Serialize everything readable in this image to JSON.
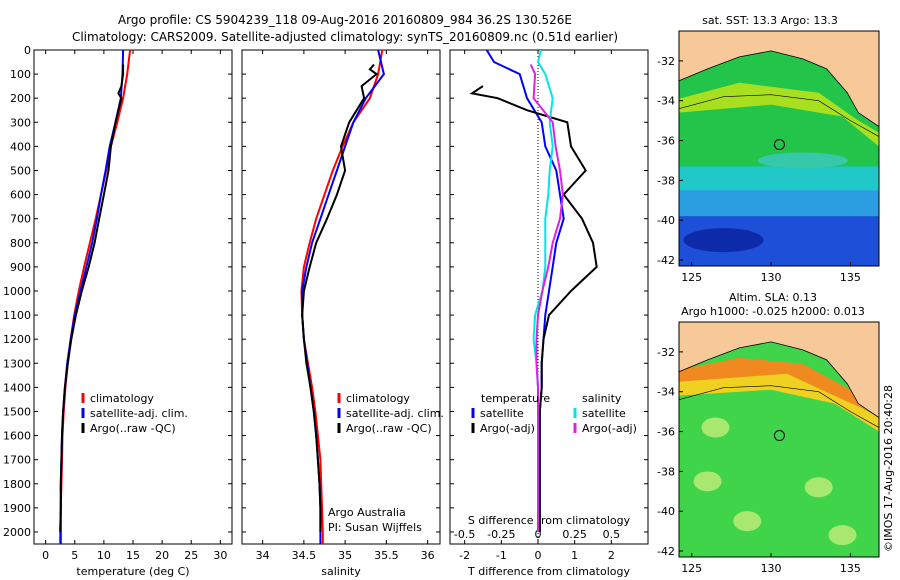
{
  "header": {
    "line1": "Argo profile: CS 5904239_118 09-Aug-2016 20160809_984 36.2S 130.526E",
    "line2": "Climatology: CARS2009. Satellite-adjusted climatology: synTS_20160809.nc (0.51d earlier)"
  },
  "footer": {
    "argo_australia": "Argo Australia",
    "pi": "PI: Susan Wijffels",
    "imos_stamp": "©IMOS 17-Aug-2016 20:40:28"
  },
  "colors": {
    "climatology": "#ff0000",
    "satellite": "#0000ff",
    "argo": "#000000",
    "sat_salinity": "#00e5e5",
    "argo_salinity": "#e020e0",
    "land": "#f7c898"
  },
  "chart_data": [
    {
      "type": "line",
      "panel": "temperature",
      "xlabel": "temperature (deg C)",
      "ylabel": "",
      "xlim": [
        -2,
        32
      ],
      "ylim": [
        2050,
        0
      ],
      "xticks": [
        0,
        5,
        10,
        15,
        20,
        25,
        30
      ],
      "yticks": [
        0,
        100,
        200,
        300,
        400,
        500,
        600,
        700,
        800,
        900,
        1000,
        1100,
        1200,
        1300,
        1400,
        1500,
        1600,
        1700,
        1800,
        1900,
        2000
      ],
      "legend": [
        "climatology",
        "satellite-adj. clim.",
        "Argo(..raw -QC)"
      ],
      "series": [
        {
          "name": "climatology",
          "depth": [
            0,
            100,
            200,
            300,
            400,
            500,
            600,
            700,
            800,
            900,
            1000,
            1100,
            1200,
            1300,
            1400,
            1500,
            1600,
            1700,
            1800,
            1900,
            2000,
            2050
          ],
          "values": [
            14.5,
            14.0,
            13.3,
            12.3,
            11.2,
            10.4,
            9.5,
            8.6,
            7.6,
            6.6,
            5.7,
            4.9,
            4.3,
            3.8,
            3.4,
            3.1,
            2.9,
            2.8,
            2.7,
            2.6,
            2.5,
            2.5
          ]
        },
        {
          "name": "satellite-adj. clim.",
          "depth": [
            0,
            100,
            200,
            300,
            400,
            500,
            600,
            700,
            800,
            900,
            1000,
            1100,
            1200,
            1300,
            1400,
            1500,
            1600,
            1700,
            1800,
            1900,
            2000,
            2050
          ],
          "values": [
            13.3,
            13.2,
            12.9,
            12.0,
            11.0,
            10.3,
            9.5,
            8.8,
            8.0,
            7.0,
            6.0,
            5.0,
            4.3,
            3.7,
            3.3,
            3.0,
            2.8,
            2.7,
            2.6,
            2.6,
            2.6,
            2.6
          ]
        },
        {
          "name": "Argo(..raw -QC)",
          "depth": [
            60,
            100,
            150,
            180,
            200,
            300,
            400,
            500,
            600,
            700,
            800,
            900,
            1000,
            1100,
            1200,
            1300,
            1400,
            1500,
            1600,
            1700,
            1800,
            1900,
            2000
          ],
          "values": [
            13.3,
            13.3,
            13.0,
            12.5,
            13.0,
            12.0,
            11.2,
            10.8,
            10.0,
            9.2,
            8.4,
            7.4,
            6.2,
            5.2,
            4.4,
            3.8,
            3.3,
            3.0,
            2.8,
            2.7,
            2.6,
            2.6,
            2.5
          ]
        }
      ]
    },
    {
      "type": "line",
      "panel": "salinity",
      "xlabel": "salinity",
      "ylabel": "",
      "xlim": [
        33.75,
        36.15
      ],
      "ylim": [
        2050,
        0
      ],
      "xticks": [
        34,
        34.5,
        35,
        35.5,
        36
      ],
      "legend": [
        "climatology",
        "satellite-adj. clim.",
        "Argo(..raw -QC)"
      ],
      "series": [
        {
          "name": "climatology",
          "depth": [
            0,
            100,
            200,
            300,
            400,
            500,
            600,
            700,
            800,
            900,
            1000,
            1100,
            1200,
            1300,
            1400,
            1500,
            1600,
            1700,
            1800,
            1900,
            2000,
            2050
          ],
          "values": [
            35.45,
            35.4,
            35.3,
            35.1,
            34.97,
            34.85,
            34.75,
            34.65,
            34.57,
            34.5,
            34.47,
            34.48,
            34.5,
            34.55,
            34.6,
            34.64,
            34.67,
            34.7,
            34.71,
            34.72,
            34.73,
            34.73
          ]
        },
        {
          "name": "satellite-adj. clim.",
          "depth": [
            0,
            100,
            200,
            300,
            400,
            500,
            600,
            700,
            800,
            900,
            1000,
            1100,
            1200,
            1300,
            1400,
            1500,
            1600,
            1700,
            1800,
            1900,
            2000,
            2050
          ],
          "values": [
            35.4,
            35.47,
            35.25,
            35.1,
            35.0,
            34.9,
            34.8,
            34.7,
            34.6,
            34.53,
            34.48,
            34.48,
            34.5,
            34.54,
            34.58,
            34.62,
            34.65,
            34.67,
            34.69,
            34.7,
            34.7,
            34.7
          ]
        },
        {
          "name": "Argo(..raw -QC)",
          "depth": [
            60,
            80,
            100,
            150,
            200,
            300,
            400,
            500,
            600,
            700,
            800,
            900,
            1000,
            1100,
            1200,
            1300,
            1400,
            1500,
            1600,
            1700,
            1800,
            1900,
            2000
          ],
          "values": [
            35.35,
            35.3,
            35.38,
            35.2,
            35.23,
            35.05,
            34.95,
            35.0,
            34.9,
            34.78,
            34.65,
            34.57,
            34.5,
            34.48,
            34.5,
            34.53,
            34.58,
            34.62,
            34.65,
            34.67,
            34.69,
            34.7,
            34.7
          ]
        }
      ]
    },
    {
      "type": "line",
      "panel": "difference",
      "xlabel": "T difference from climatology",
      "title": "S difference from climatology",
      "xlim": [
        -2.4,
        3.0
      ],
      "ylim": [
        2050,
        0
      ],
      "xticks_T": [
        -2,
        -1,
        0,
        1,
        2
      ],
      "xticks_S": [
        -0.5,
        -0.25,
        0,
        0.25,
        0.5
      ],
      "legend_temperature_title": "temperature",
      "legend_salinity_title": "salinity",
      "legend": [
        "satellite",
        "Argo(-adj)",
        "satellite",
        "Argo(-adj)"
      ],
      "series": [
        {
          "name": "temperature satellite",
          "depth": [
            0,
            50,
            100,
            200,
            300,
            400,
            500,
            600,
            700,
            800,
            900,
            1000,
            1100,
            1200,
            1300,
            1400,
            1500,
            1600,
            1700,
            1800,
            1900,
            2000
          ],
          "values": [
            -1.4,
            -1.2,
            -0.5,
            -0.3,
            0.1,
            0.2,
            0.5,
            0.6,
            0.7,
            0.5,
            0.4,
            0.3,
            0.2,
            0.15,
            0.1,
            0.1,
            0.05,
            0.05,
            0.05,
            0.05,
            0.05,
            0.05
          ]
        },
        {
          "name": "temperature Argo(-adj)",
          "depth": [
            150,
            180,
            200,
            250,
            300,
            400,
            500,
            550,
            600,
            700,
            800,
            900,
            1000,
            1100,
            1200,
            1300,
            1400,
            1500,
            1600,
            1700,
            1800,
            1900,
            2000
          ],
          "values": [
            -1.5,
            -1.8,
            -1.1,
            -0.3,
            0.8,
            0.9,
            1.3,
            1.0,
            0.7,
            1.2,
            1.5,
            1.6,
            0.9,
            0.3,
            0.15,
            0.1,
            0.1,
            0.05,
            0.05,
            0.05,
            0.05,
            0.05,
            0.05
          ]
        },
        {
          "name": "salinity satellite",
          "depth": [
            0,
            50,
            100,
            200,
            300,
            400,
            500,
            600,
            700,
            800,
            900,
            1000,
            1100,
            1200,
            1300,
            1400,
            1500,
            1600,
            1700,
            1800,
            1900,
            2000
          ],
          "values": [
            0.02,
            0.0,
            0.05,
            0.1,
            0.08,
            0.1,
            0.08,
            0.07,
            0.05,
            0.05,
            0.05,
            0.03,
            -0.02,
            -0.03,
            -0.01,
            0.0,
            0.0,
            0.0,
            0.0,
            0.0,
            0.0,
            0.0
          ]
        },
        {
          "name": "salinity Argo(-adj)",
          "depth": [
            60,
            100,
            200,
            300,
            400,
            500,
            600,
            700,
            800,
            900,
            1000,
            1100,
            1200,
            1300,
            1400,
            1500,
            1600,
            1700,
            1800,
            1900,
            2000
          ],
          "values": [
            -0.05,
            -0.02,
            -0.03,
            0.1,
            0.12,
            0.15,
            0.17,
            0.15,
            0.1,
            0.07,
            0.03,
            0.0,
            -0.01,
            -0.01,
            0.0,
            0.0,
            0.0,
            0.0,
            0.0,
            0.0,
            0.0
          ]
        }
      ]
    },
    {
      "type": "heatmap",
      "panel": "map-sst",
      "title": "sat. SST: 13.3  Argo: 13.3",
      "xticks": [
        125,
        130,
        135
      ],
      "yticks": [
        -32,
        -34,
        -36,
        -38,
        -40,
        -42
      ],
      "float_position": [
        130.526,
        -36.2
      ]
    },
    {
      "type": "heatmap",
      "panel": "map-sla",
      "title_line1": "Altim. SLA: 0.13",
      "title_line2": "Argo h1000: -0.025 h2000: 0.013",
      "xticks": [
        125,
        130,
        135
      ],
      "yticks": [
        -32,
        -34,
        -36,
        -38,
        -40,
        -42
      ],
      "float_position": [
        130.526,
        -36.2
      ]
    }
  ]
}
